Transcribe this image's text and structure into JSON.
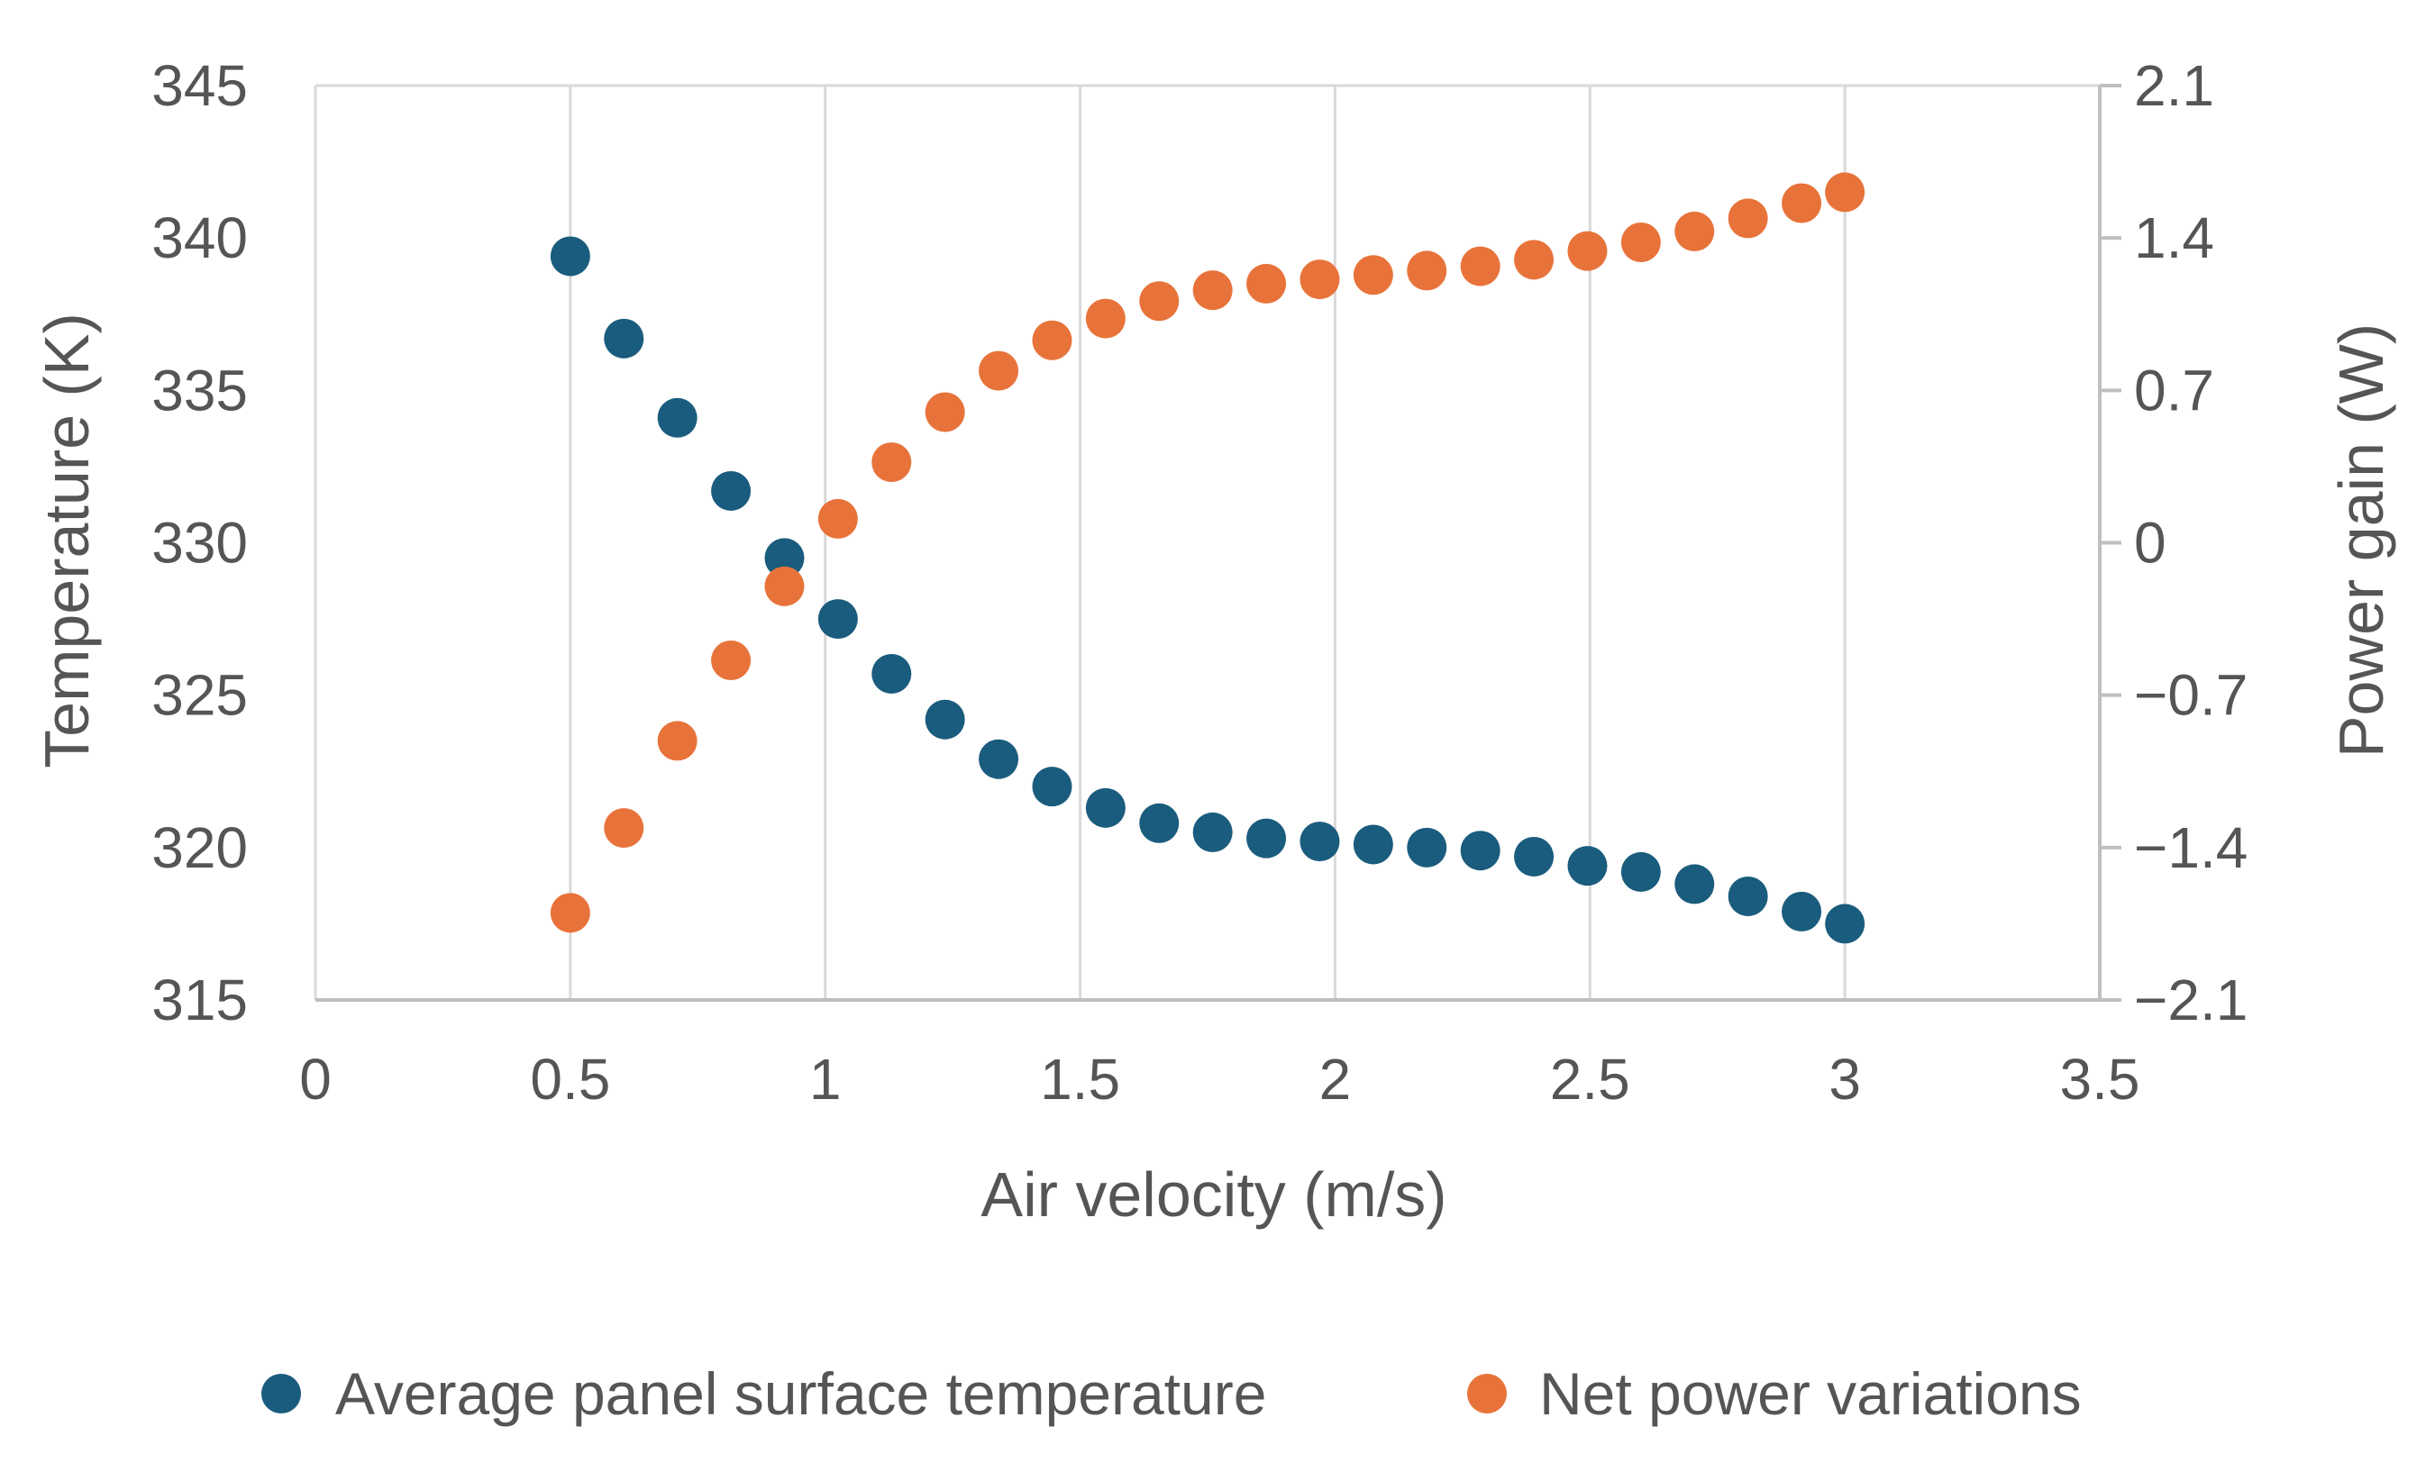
{
  "chart_data": {
    "type": "scatter",
    "title": "",
    "xlabel": "Air velocity (m/s)",
    "ylabel": "Temperature (K)",
    "y2label": "Power gain (W)",
    "xlim": [
      0,
      3.5
    ],
    "ylim": [
      315,
      345
    ],
    "y2lim": [
      -2.1,
      2.1
    ],
    "x_ticks": [
      "0",
      "0.5",
      "1",
      "1.5",
      "2",
      "2.5",
      "3",
      "3.5"
    ],
    "y_ticks": [
      "315",
      "320",
      "325",
      "330",
      "335",
      "340",
      "345"
    ],
    "y2_ticks": [
      "−2.1",
      "−1.4",
      "−0.7",
      "0",
      "0.7",
      "1.4",
      "2.1"
    ],
    "grid": "vertical",
    "legend": "bottom",
    "series": [
      {
        "name": "Average panel surface temperature",
        "axis": "left",
        "color": "#1a5c7d",
        "x": [
          0.5,
          0.605,
          0.71,
          0.815,
          0.92,
          1.025,
          1.13,
          1.235,
          1.34,
          1.445,
          1.55,
          1.655,
          1.76,
          1.865,
          1.97,
          2.075,
          2.18,
          2.285,
          2.39,
          2.495,
          2.6,
          2.705,
          2.81,
          2.915,
          3.0
        ],
        "y": [
          339.4,
          336.7,
          334.1,
          331.7,
          329.5,
          327.5,
          325.7,
          324.2,
          322.9,
          322.0,
          321.3,
          320.8,
          320.5,
          320.3,
          320.2,
          320.1,
          320.0,
          319.9,
          319.7,
          319.4,
          319.2,
          318.8,
          318.4,
          317.9,
          317.5
        ]
      },
      {
        "name": "Net power variations",
        "axis": "right",
        "color": "#e8733a",
        "x": [
          0.5,
          0.605,
          0.71,
          0.815,
          0.92,
          1.025,
          1.13,
          1.235,
          1.34,
          1.445,
          1.55,
          1.655,
          1.76,
          1.865,
          1.97,
          2.075,
          2.18,
          2.285,
          2.39,
          2.495,
          2.6,
          2.705,
          2.81,
          2.915,
          3.0
        ],
        "y": [
          -1.7,
          -1.31,
          -0.91,
          -0.54,
          -0.2,
          0.11,
          0.37,
          0.6,
          0.79,
          0.93,
          1.03,
          1.11,
          1.16,
          1.19,
          1.21,
          1.23,
          1.25,
          1.27,
          1.3,
          1.34,
          1.38,
          1.43,
          1.49,
          1.56,
          1.61
        ]
      }
    ]
  }
}
